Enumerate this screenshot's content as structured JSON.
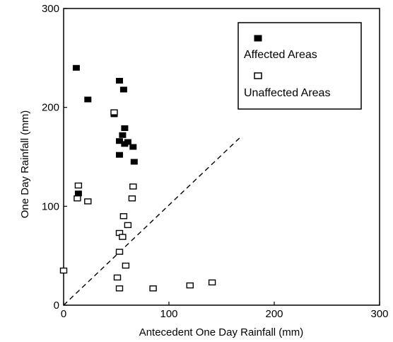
{
  "chart_data": {
    "type": "scatter",
    "xlabel": "Antecedent One Day Rainfall (mm)",
    "ylabel": "One Day Rainfall (mm)",
    "xlim": [
      0,
      300
    ],
    "ylim": [
      0,
      300
    ],
    "xticks": [
      "0",
      "100",
      "200",
      "300"
    ],
    "yticks": [
      "0",
      "100",
      "200",
      "300"
    ],
    "legend_position": "top-right",
    "series": [
      {
        "name": "Affected Areas",
        "marker": "filled-square",
        "color": "#000000",
        "points": [
          [
            12,
            240
          ],
          [
            23,
            208
          ],
          [
            14,
            113
          ],
          [
            53,
            227
          ],
          [
            57,
            218
          ],
          [
            48,
            193
          ],
          [
            58,
            179
          ],
          [
            56,
            172
          ],
          [
            53,
            166
          ],
          [
            61,
            165
          ],
          [
            58,
            163
          ],
          [
            66,
            160
          ],
          [
            53,
            152
          ],
          [
            67,
            145
          ]
        ]
      },
      {
        "name": "Unaffected Areas",
        "marker": "open-square",
        "color": "#000000",
        "points": [
          [
            48,
            195
          ],
          [
            14,
            121
          ],
          [
            13,
            108
          ],
          [
            23,
            105
          ],
          [
            66,
            120
          ],
          [
            65,
            108
          ],
          [
            57,
            90
          ],
          [
            61,
            81
          ],
          [
            53,
            73
          ],
          [
            56,
            69
          ],
          [
            53,
            54
          ],
          [
            59,
            40
          ],
          [
            51,
            28
          ],
          [
            53,
            17
          ],
          [
            85,
            17
          ],
          [
            120,
            20
          ],
          [
            141,
            23
          ],
          [
            0,
            35
          ]
        ]
      }
    ],
    "reference_line": {
      "style": "dashed",
      "from": [
        0,
        0
      ],
      "to": [
        168,
        170
      ]
    }
  }
}
